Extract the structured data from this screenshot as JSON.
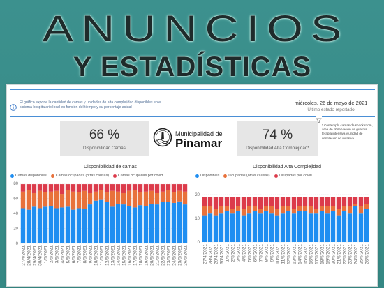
{
  "banner": {
    "title": "ANUNCIOS",
    "subtitle": "Y ESTADÍSTICAS"
  },
  "colors": {
    "background": "#378a87",
    "accent_line": "#4a8fd6",
    "kpi_card": "#e6e6e6"
  },
  "dashboard": {
    "info_icon": "info-icon",
    "info_text": "El gráfico expone la cantidad de camas y unidades de alta complejidad disponibles en el sistema hospitalario local en función del tiempo y su porcentaje actual",
    "date": "miércoles, 26 de mayo de 2021",
    "status_label": "Último estado reportado",
    "filter_icon": "filter-icon",
    "kpis": [
      {
        "value": "66 %",
        "label": "Disponibilidad Camas"
      },
      {
        "value": "74 %",
        "label": "Disponibilidad Alta Complejidad*"
      }
    ],
    "logo": {
      "icon": "municipality-seal-icon",
      "line1": "Municipalidad de",
      "line2": "Pinamar"
    },
    "footnote": "* Contempla camas de shock room, área de observación de guardia terapia intensiva y unidad de ventilación no invasiva"
  },
  "chart_data": [
    {
      "type": "bar",
      "stacked": true,
      "title": "Disponibilidad de camas",
      "xlabel": "",
      "ylabel": "",
      "categories": [
        "27/4/2021",
        "28/4/2021",
        "29/4/2021",
        "30/4/2021",
        "1/5/2021",
        "2/5/2021",
        "3/5/2021",
        "4/5/2021",
        "5/5/2021",
        "6/5/2021",
        "7/5/2021",
        "8/5/2021",
        "9/5/2021",
        "10/5/2021",
        "11/5/2021",
        "12/5/2021",
        "13/5/2021",
        "14/5/2021",
        "15/5/2021",
        "16/5/2021",
        "17/5/2021",
        "18/5/2021",
        "19/5/2021",
        "20/5/2021",
        "21/5/2021",
        "22/5/2021",
        "23/5/2021",
        "24/5/2021",
        "25/5/2021",
        "26/5/2021"
      ],
      "series": [
        {
          "name": "Camas disponibles",
          "color": "#1f8ef1",
          "values": [
            47,
            45,
            49,
            47,
            49,
            50,
            47,
            48,
            49,
            45,
            47,
            46,
            52,
            57,
            58,
            55,
            49,
            53,
            52,
            50,
            48,
            51,
            50,
            53,
            52,
            55,
            55,
            54,
            56,
            52
          ]
        },
        {
          "name": "Camas ocupadas (otras causas)",
          "color": "#e8713b",
          "values": [
            22,
            26,
            18,
            23,
            19,
            19,
            23,
            18,
            22,
            24,
            21,
            24,
            15,
            12,
            13,
            13,
            21,
            16,
            15,
            20,
            23,
            17,
            19,
            17,
            15,
            14,
            16,
            14,
            14,
            17
          ]
        },
        {
          "name": "Camas ocupadas por covid",
          "color": "#dc3b4b",
          "values": [
            10,
            8,
            12,
            9,
            11,
            10,
            9,
            13,
            8,
            10,
            11,
            9,
            12,
            10,
            8,
            11,
            9,
            10,
            12,
            9,
            8,
            11,
            10,
            9,
            12,
            10,
            8,
            11,
            9,
            10
          ]
        }
      ],
      "ylim": [
        0,
        80
      ],
      "yticks": [
        0,
        20,
        40,
        60,
        80
      ],
      "grid": true,
      "legend": "top-left"
    },
    {
      "type": "bar",
      "stacked": true,
      "title": "Disponibilidad Alta Complejidad",
      "xlabel": "",
      "ylabel": "",
      "categories": [
        "27/4/2021",
        "28/4/2021",
        "29/4/2021",
        "30/4/2021",
        "1/5/2021",
        "2/5/2021",
        "3/5/2021",
        "4/5/2021",
        "5/5/2021",
        "6/5/2021",
        "7/5/2021",
        "8/5/2021",
        "9/5/2021",
        "10/5/2021",
        "11/5/2021",
        "12/5/2021",
        "13/5/2021",
        "14/5/2021",
        "15/5/2021",
        "16/5/2021",
        "17/5/2021",
        "18/5/2021",
        "19/5/2021",
        "20/5/2021",
        "21/5/2021",
        "22/5/2021",
        "23/5/2021",
        "24/5/2021",
        "25/5/2021",
        "26/5/2021"
      ],
      "series": [
        {
          "name": "Disponibles",
          "color": "#1f8ef1",
          "values": [
            11,
            12,
            11,
            12,
            13,
            12,
            13,
            11,
            12,
            13,
            12,
            13,
            12,
            11,
            12,
            13,
            12,
            13,
            13,
            12,
            12,
            13,
            12,
            13,
            11,
            13,
            12,
            15,
            12,
            14
          ]
        },
        {
          "name": "Ocupadas (otras causas)",
          "color": "#e8713b",
          "values": [
            4,
            3,
            3,
            3,
            2,
            2,
            2,
            3,
            3,
            2,
            2,
            2,
            3,
            3,
            3,
            2,
            2,
            2,
            2,
            3,
            2,
            2,
            3,
            2,
            3,
            2,
            3,
            1,
            3,
            2
          ]
        },
        {
          "name": "Ocupadas por covid",
          "color": "#dc3b4b",
          "values": [
            4,
            4,
            5,
            4,
            4,
            5,
            4,
            5,
            4,
            4,
            5,
            4,
            4,
            5,
            4,
            4,
            5,
            4,
            4,
            4,
            5,
            4,
            4,
            4,
            5,
            4,
            4,
            3,
            4,
            3
          ]
        }
      ],
      "ylim": [
        0,
        20
      ],
      "yticks": [
        0,
        10,
        20
      ],
      "grid": true,
      "legend": "top-left"
    }
  ]
}
